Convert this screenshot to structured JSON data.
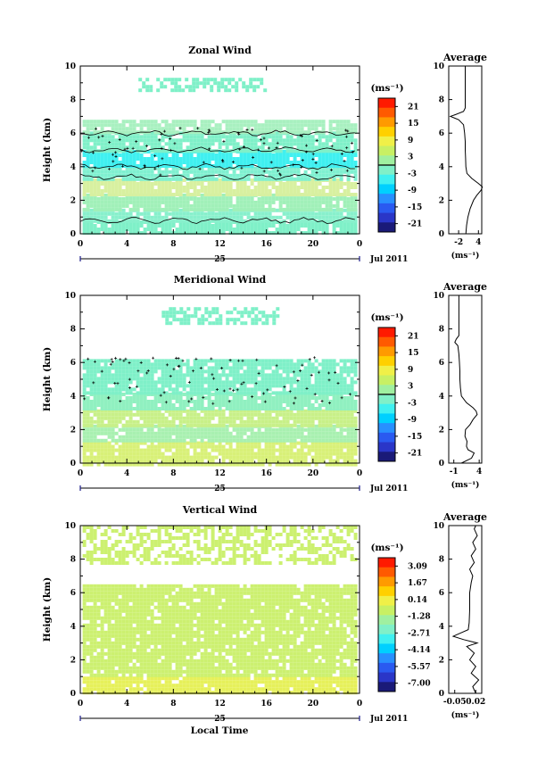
{
  "figure": {
    "xaxis_shared": {
      "ticks": [
        "0",
        "4",
        "8",
        "12",
        "16",
        "20",
        "0"
      ],
      "date_day": "25",
      "date_month": "Jul 2011",
      "label": "Local Time"
    }
  },
  "chart_data": [
    {
      "type": "heatmap",
      "title": "Zonal Wind",
      "ylabel": "Height (km)",
      "xlim": [
        0,
        24
      ],
      "ylim": [
        0,
        10
      ],
      "yticks": [
        "0",
        "2",
        "4",
        "6",
        "8",
        "10"
      ],
      "x_day": "25",
      "x_month": "Jul 2011",
      "colorbar": {
        "unit_label": "(ms⁻¹)",
        "ticks": [
          "21",
          "15",
          "9",
          "3",
          "-3",
          "-9",
          "-15",
          "-21"
        ],
        "colors": [
          "#ff1a00",
          "#ff5a00",
          "#ff9a00",
          "#ffd000",
          "#f0f048",
          "#c8f064",
          "#a0f0a0",
          "#80f0c8",
          "#40f0f0",
          "#00d0ff",
          "#2890ff",
          "#2a5af0",
          "#2a36c8",
          "#1a1a78"
        ],
        "contour_level": "0"
      },
      "layers": [
        {
          "y0": 0.0,
          "y1": 0.8,
          "color": "#7ff0c8"
        },
        {
          "y0": 0.8,
          "y1": 1.5,
          "color": "#88f0cc"
        },
        {
          "y0": 1.5,
          "y1": 2.4,
          "color": "#a0f0b8"
        },
        {
          "y0": 2.4,
          "y1": 3.3,
          "color": "#d8f0a0"
        },
        {
          "y0": 3.3,
          "y1": 4.0,
          "color": "#7ff0d0"
        },
        {
          "y0": 4.0,
          "y1": 5.0,
          "color": "#40f0f0"
        },
        {
          "y0": 5.0,
          "y1": 6.1,
          "color": "#7ff0c8"
        },
        {
          "y0": 6.1,
          "y1": 6.8,
          "color": "#a8f0c0"
        },
        {
          "y0": 8.5,
          "y1": 9.3,
          "color": "#7ff0c8",
          "x0": 5,
          "x1": 16,
          "sparse": true
        }
      ],
      "contours_km": [
        0.8,
        3.4,
        4.0,
        5.0,
        6.0
      ],
      "profile": {
        "title": "Average",
        "xlim": [
          -5,
          5
        ],
        "xticks": [
          "-2",
          "4"
        ],
        "xtick_values": [
          -2,
          4
        ],
        "xlabel": "(ms⁻¹)",
        "height_km": [
          0.0,
          0.5,
          1.0,
          1.5,
          2.0,
          2.3,
          2.6,
          2.8,
          3.0,
          3.3,
          3.6,
          4.0,
          4.5,
          5.0,
          5.5,
          6.0,
          6.5,
          6.8,
          7.0,
          7.1,
          7.3,
          7.5,
          8.0,
          8.5,
          9.0,
          9.5,
          10.0
        ],
        "values": [
          0.2,
          0.4,
          0.8,
          1.5,
          2.5,
          3.5,
          4.8,
          5.2,
          4.0,
          2.0,
          0.5,
          0.2,
          0.1,
          0.0,
          0.0,
          -0.2,
          -0.5,
          -2.0,
          -4.5,
          -3.0,
          -0.5,
          0.0,
          0.0,
          0.0,
          0.0,
          0.0,
          0.0
        ]
      }
    },
    {
      "type": "heatmap",
      "title": "Meridional Wind",
      "ylabel": "Height (km)",
      "xlim": [
        0,
        24
      ],
      "ylim": [
        0,
        10
      ],
      "yticks": [
        "0",
        "2",
        "4",
        "6",
        "8",
        "10"
      ],
      "x_day": "25",
      "x_month": "Jul 2011",
      "colorbar": {
        "unit_label": "(ms⁻¹)",
        "ticks": [
          "21",
          "15",
          "9",
          "3",
          "-3",
          "-9",
          "-15",
          "-21"
        ],
        "colors": [
          "#ff1a00",
          "#ff5a00",
          "#ff9a00",
          "#ffd000",
          "#f0f048",
          "#c8f064",
          "#a0f0a0",
          "#80f0c8",
          "#40f0f0",
          "#00d0ff",
          "#2890ff",
          "#2a5af0",
          "#2a36c8",
          "#1a1a78"
        ],
        "contour_level": "0"
      },
      "layers": [
        {
          "y0": 0.0,
          "y1": 1.3,
          "color": "#d8f078"
        },
        {
          "y0": 1.3,
          "y1": 2.3,
          "color": "#a8f0b0"
        },
        {
          "y0": 2.3,
          "y1": 3.2,
          "color": "#c8f088"
        },
        {
          "y0": 3.2,
          "y1": 4.2,
          "color": "#90f0c0"
        },
        {
          "y0": 4.2,
          "y1": 6.2,
          "color": "#7ff0c8"
        },
        {
          "y0": 8.3,
          "y1": 9.3,
          "color": "#7ff0c8",
          "x0": 7,
          "x1": 17,
          "sparse": true
        }
      ],
      "contours_km": [],
      "profile": {
        "title": "Average",
        "xlim": [
          -2,
          4.5
        ],
        "xticks": [
          "-1",
          "4"
        ],
        "xtick_values": [
          -1,
          4
        ],
        "xlabel": "(ms⁻¹)",
        "height_km": [
          0.0,
          0.3,
          0.6,
          0.8,
          1.0,
          1.3,
          1.6,
          2.0,
          2.3,
          2.6,
          2.9,
          3.1,
          3.3,
          3.6,
          4.0,
          4.5,
          5.0,
          5.5,
          6.0,
          6.5,
          7.0,
          7.2,
          7.4,
          7.6,
          8.0,
          9.0,
          10.0
        ],
        "values": [
          0.5,
          2.5,
          3.0,
          1.8,
          1.5,
          1.6,
          1.2,
          1.3,
          2.2,
          2.8,
          3.6,
          3.4,
          2.8,
          1.5,
          0.5,
          0.3,
          0.2,
          0.2,
          0.1,
          0.0,
          -0.2,
          -0.8,
          -0.5,
          0.0,
          0.0,
          0.0,
          0.0
        ]
      }
    },
    {
      "type": "heatmap",
      "title": "Vertical Wind",
      "ylabel": "Height (km)",
      "xlim": [
        0,
        24
      ],
      "ylim": [
        0,
        10
      ],
      "yticks": [
        "0",
        "2",
        "4",
        "6",
        "8",
        "10"
      ],
      "x_day": "25",
      "x_month": "Jul 2011",
      "colorbar": {
        "unit_label": "(ms⁻¹)",
        "ticks": [
          "3.09",
          "1.67",
          "0.14",
          "-1.28",
          "-2.71",
          "-4.14",
          "-5.57",
          "-7.00"
        ],
        "colors": [
          "#ff1a00",
          "#ff5a00",
          "#ff9a00",
          "#ffd000",
          "#f0f048",
          "#c8f064",
          "#a0f0a0",
          "#80f0c8",
          "#40f0f0",
          "#00d0ff",
          "#2890ff",
          "#2a5af0",
          "#2a36c8",
          "#1a1a78"
        ],
        "contour_level": ""
      },
      "layers": [
        {
          "y0": 0.0,
          "y1": 1.0,
          "color": "#e6f05a"
        },
        {
          "y0": 1.0,
          "y1": 6.5,
          "color": "#ccf070"
        },
        {
          "y0": 7.8,
          "y1": 10.0,
          "color": "#ccf070",
          "sparse": true
        }
      ],
      "contours_km": [],
      "profile": {
        "title": "Average",
        "xlim": [
          -0.07,
          0.04
        ],
        "xticks": [
          "-0.05",
          "0.02"
        ],
        "xtick_values": [
          -0.05,
          0.02
        ],
        "xlabel": "(ms⁻¹)",
        "height_km": [
          0.0,
          0.4,
          0.8,
          1.2,
          1.6,
          2.0,
          2.4,
          2.8,
          3.0,
          3.2,
          3.4,
          3.6,
          3.8,
          4.2,
          5.0,
          6.0,
          6.6,
          7.0,
          7.4,
          7.8,
          8.2,
          8.6,
          9.0,
          9.4,
          9.8,
          10.0
        ],
        "values": [
          0.02,
          0.01,
          0.03,
          0.005,
          0.02,
          0.0,
          0.015,
          -0.01,
          0.025,
          -0.02,
          -0.055,
          -0.03,
          -0.005,
          -0.002,
          0.0,
          0.0,
          0.005,
          0.01,
          0.0,
          0.015,
          0.005,
          0.02,
          0.01,
          0.025,
          0.015,
          0.02
        ]
      }
    }
  ]
}
